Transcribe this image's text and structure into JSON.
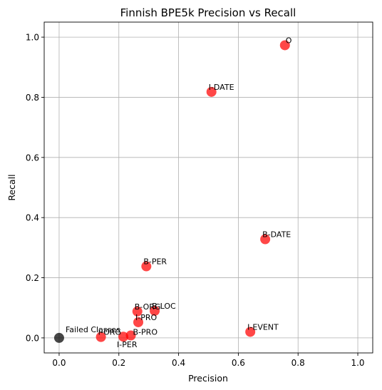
{
  "chart_data": {
    "type": "scatter",
    "title": "Finnish BPE5k Precision vs Recall",
    "xlabel": "Precision",
    "ylabel": "Recall",
    "xlim": [
      -0.05,
      1.05
    ],
    "ylim": [
      -0.05,
      1.05
    ],
    "xticks": [
      0.0,
      0.2,
      0.4,
      0.6,
      0.8,
      1.0
    ],
    "yticks": [
      0.0,
      0.2,
      0.4,
      0.6,
      0.8,
      1.0
    ],
    "xtick_labels": [
      "0.0",
      "0.2",
      "0.4",
      "0.6",
      "0.8",
      "1.0"
    ],
    "ytick_labels": [
      "0.0",
      "0.2",
      "0.4",
      "0.6",
      "0.8",
      "1.0"
    ],
    "grid": true,
    "points": [
      {
        "label": "O",
        "x": 0.756,
        "y": 0.973,
        "color": "#ff0000",
        "label_pos": "above-right"
      },
      {
        "label": "I-DATE",
        "x": 0.51,
        "y": 0.818,
        "color": "#ff0000",
        "label_pos": "above-left"
      },
      {
        "label": "B-DATE",
        "x": 0.69,
        "y": 0.328,
        "color": "#ff0000",
        "label_pos": "above-left"
      },
      {
        "label": "B-PER",
        "x": 0.292,
        "y": 0.238,
        "color": "#ff0000",
        "label_pos": "above-left"
      },
      {
        "label": "B-ORG",
        "x": 0.262,
        "y": 0.088,
        "color": "#ff0000",
        "label_pos": "above-left"
      },
      {
        "label": "B-LOC",
        "x": 0.32,
        "y": 0.09,
        "color": "#ff0000",
        "label_pos": "above-left"
      },
      {
        "label": "I-PRO",
        "x": 0.265,
        "y": 0.052,
        "color": "#ff0000",
        "label_pos": "above-left"
      },
      {
        "label": "B-PRO",
        "x": 0.24,
        "y": 0.008,
        "color": "#ff0000",
        "label_pos": "right"
      },
      {
        "label": "I-PER",
        "x": 0.215,
        "y": 0.004,
        "color": "#ff0000",
        "label_pos": "below"
      },
      {
        "label": "I-ORG",
        "x": 0.14,
        "y": 0.003,
        "color": "#ff0000",
        "label_pos": "above-left"
      },
      {
        "label": "I-EVENT",
        "x": 0.64,
        "y": 0.02,
        "color": "#ff0000",
        "label_pos": "above-left"
      },
      {
        "label": "Failed Classes",
        "x": 0.0,
        "y": 0.0,
        "color": "#000000",
        "label_pos": "above-right"
      }
    ]
  }
}
